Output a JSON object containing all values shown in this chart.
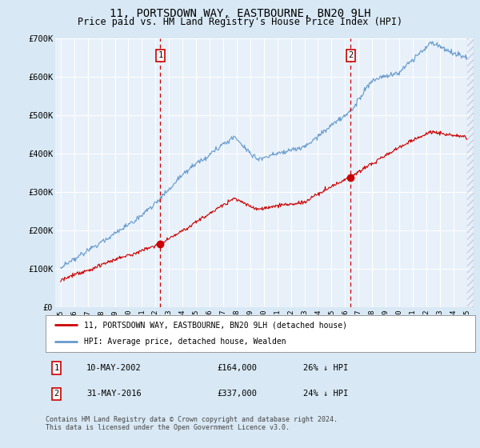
{
  "title": "11, PORTSDOWN WAY, EASTBOURNE, BN20 9LH",
  "subtitle": "Price paid vs. HM Land Registry's House Price Index (HPI)",
  "title_fontsize": 10,
  "subtitle_fontsize": 8.5,
  "ylim": [
    0,
    700000
  ],
  "yticks": [
    0,
    100000,
    200000,
    300000,
    400000,
    500000,
    600000,
    700000
  ],
  "ytick_labels": [
    "£0",
    "£100K",
    "£200K",
    "£300K",
    "£400K",
    "£500K",
    "£600K",
    "£700K"
  ],
  "xlim_start": 1994.6,
  "xlim_end": 2025.5,
  "bg_color": "#d8e8f4",
  "plot_bg": "#e8f1fa",
  "grid_color": "#ffffff",
  "sale1_x": 2002.36,
  "sale1_y": 164000,
  "sale1_label": "1",
  "sale2_x": 2016.41,
  "sale2_y": 337000,
  "sale2_label": "2",
  "red_line_color": "#cc0000",
  "blue_line_color": "#6699cc",
  "legend_label_red": "11, PORTSDOWN WAY, EASTBOURNE, BN20 9LH (detached house)",
  "legend_label_blue": "HPI: Average price, detached house, Wealden",
  "annotation1": [
    "1",
    "10-MAY-2002",
    "£164,000",
    "26% ↓ HPI"
  ],
  "annotation2": [
    "2",
    "31-MAY-2016",
    "£337,000",
    "24% ↓ HPI"
  ],
  "footer": "Contains HM Land Registry data © Crown copyright and database right 2024.\nThis data is licensed under the Open Government Licence v3.0.",
  "footer_fontsize": 6.0
}
